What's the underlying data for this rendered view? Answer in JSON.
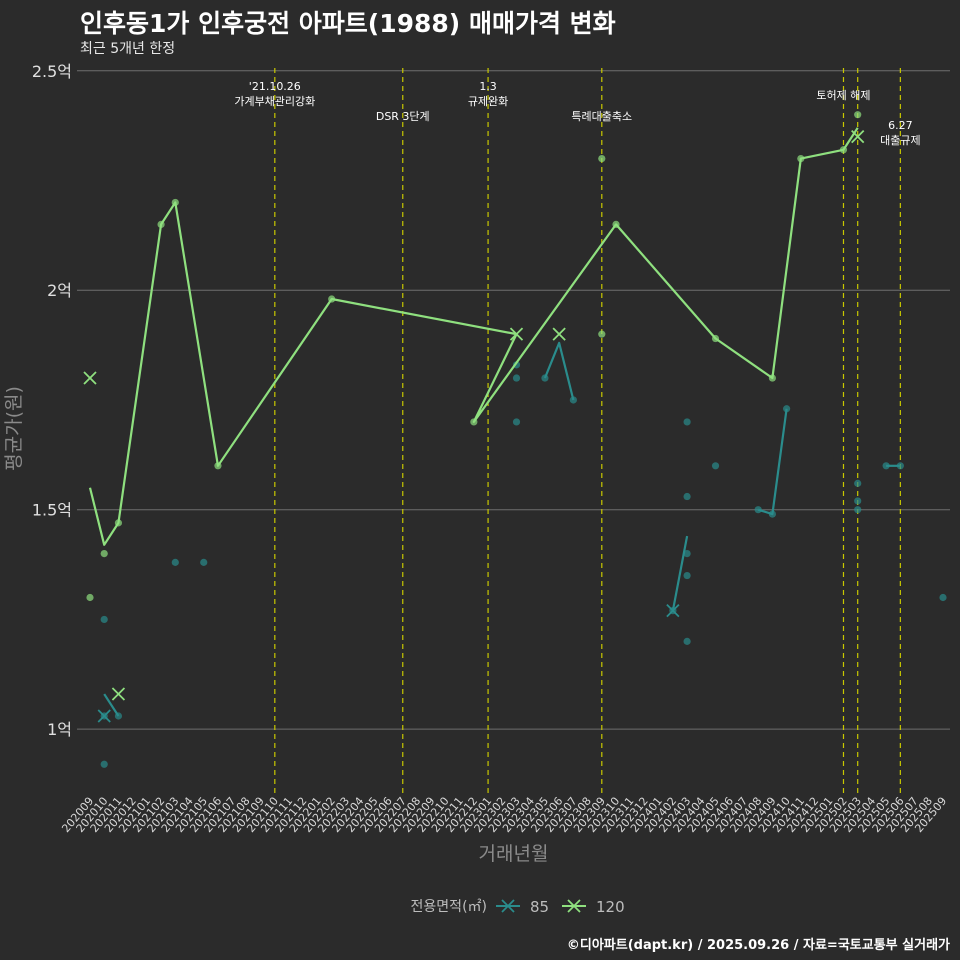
{
  "chart_data": {
    "type": "line",
    "title": "인후동1가 인후궁전 아파트(1988) 매매가격 변화",
    "subtitle": "최근 5개년 한정",
    "xlabel": "거래년월",
    "ylabel": "평균가(원)",
    "legend_title": "전용면적(㎡)",
    "legend_position": "bottom",
    "caption": "©디아파트(dapt.kr) / 2025.09.26 / 자료=국토교통부 실거래가",
    "grid": true,
    "ylim": [
      0.85,
      2.52
    ],
    "yticks": [
      1.0,
      1.5,
      2.0,
      2.5
    ],
    "ytick_labels": [
      "1억",
      "1.5억",
      "2억",
      "2.5억"
    ],
    "x": [
      "202009",
      "202010",
      "202011",
      "202012",
      "202101",
      "202102",
      "202103",
      "202104",
      "202105",
      "202106",
      "202107",
      "202108",
      "202109",
      "202110",
      "202111",
      "202112",
      "202201",
      "202202",
      "202203",
      "202204",
      "202205",
      "202206",
      "202207",
      "202208",
      "202209",
      "202210",
      "202211",
      "202212",
      "202301",
      "202302",
      "202303",
      "202304",
      "202305",
      "202306",
      "202307",
      "202308",
      "202309",
      "202310",
      "202311",
      "202312",
      "202401",
      "202402",
      "202403",
      "202404",
      "202405",
      "202406",
      "202407",
      "202408",
      "202409",
      "202410",
      "202411",
      "202412",
      "202501",
      "202502",
      "202503",
      "202504",
      "202505",
      "202506",
      "202507",
      "202508",
      "202509"
    ],
    "series": [
      {
        "name": "85",
        "color": "#2a8c8c",
        "line": [
          [
            "202010",
            1.08
          ],
          [
            "202011",
            1.03
          ],
          null,
          [
            "202305",
            1.8
          ],
          [
            "202306",
            1.88
          ],
          [
            "202307",
            1.75
          ],
          null,
          [
            "202402",
            1.27
          ],
          [
            "202403",
            1.44
          ],
          null,
          [
            "202408",
            1.5
          ],
          [
            "202409",
            1.49
          ],
          [
            "202410",
            1.73
          ],
          null,
          [
            "202505",
            1.6
          ],
          [
            "202506",
            1.6
          ]
        ],
        "points": [
          [
            "202010",
            1.25
          ],
          [
            "202010",
            0.92
          ],
          [
            "202010",
            1.03
          ],
          [
            "202011",
            1.03
          ],
          [
            "202103",
            1.38
          ],
          [
            "202105",
            1.38
          ],
          [
            "202303",
            1.83
          ],
          [
            "202303",
            1.8
          ],
          [
            "202303",
            1.7
          ],
          [
            "202305",
            1.8
          ],
          [
            "202307",
            1.75
          ],
          [
            "202402",
            1.27
          ],
          [
            "202403",
            1.7
          ],
          [
            "202403",
            1.53
          ],
          [
            "202403",
            1.4
          ],
          [
            "202403",
            1.35
          ],
          [
            "202403",
            1.2
          ],
          [
            "202405",
            1.6
          ],
          [
            "202408",
            1.5
          ],
          [
            "202409",
            1.49
          ],
          [
            "202410",
            1.73
          ],
          [
            "202503",
            1.56
          ],
          [
            "202503",
            1.52
          ],
          [
            "202503",
            1.5
          ],
          [
            "202505",
            1.6
          ],
          [
            "202506",
            1.6
          ],
          [
            "202509",
            1.3
          ]
        ],
        "crosses": [
          [
            "202010",
            1.03
          ],
          [
            "202402",
            1.27
          ]
        ]
      },
      {
        "name": "120",
        "color": "#8fe07f",
        "line": [
          [
            "202009",
            1.55
          ],
          [
            "202010",
            1.42
          ],
          [
            "202011",
            1.47
          ],
          [
            "202102",
            2.15
          ],
          [
            "202103",
            2.2
          ],
          [
            "202106",
            1.6
          ],
          [
            "202202",
            1.98
          ],
          [
            "202303",
            1.9
          ],
          [
            "202212",
            1.7
          ],
          [
            "202310",
            2.15
          ],
          [
            "202405",
            1.89
          ],
          [
            "202409",
            1.8
          ],
          [
            "202411",
            2.3
          ],
          [
            "202502",
            2.32
          ],
          [
            "202503",
            2.37
          ]
        ],
        "points": [
          [
            "202009",
            1.3
          ],
          [
            "202010",
            1.4
          ],
          [
            "202011",
            1.47
          ],
          [
            "202102",
            2.15
          ],
          [
            "202103",
            2.2
          ],
          [
            "202106",
            1.6
          ],
          [
            "202202",
            1.98
          ],
          [
            "202212",
            1.7
          ],
          [
            "202309",
            2.3
          ],
          [
            "202309",
            1.9
          ],
          [
            "202310",
            2.15
          ],
          [
            "202405",
            1.89
          ],
          [
            "202409",
            1.8
          ],
          [
            "202411",
            2.3
          ],
          [
            "202502",
            2.32
          ],
          [
            "202503",
            2.4
          ]
        ],
        "crosses": [
          [
            "202009",
            1.8
          ],
          [
            "202011",
            1.08
          ],
          [
            "202303",
            1.9
          ],
          [
            "202306",
            1.9
          ],
          [
            "202503",
            2.35
          ]
        ]
      }
    ],
    "annotations": [
      {
        "x": "202110",
        "lines": [
          "'21.10.26",
          "가계부채관리강화"
        ],
        "level": 0
      },
      {
        "x": "202207",
        "lines": [
          "DSR 3단계"
        ],
        "level": 1
      },
      {
        "x": "202301",
        "lines": [
          "1.3",
          "규제완화"
        ],
        "level": 0
      },
      {
        "x": "202309",
        "lines": [
          "특례대출축소"
        ],
        "level": 1
      },
      {
        "x": "202502",
        "lines": [
          "토허제 해제"
        ],
        "level": 2
      },
      {
        "x": "202503",
        "lines": [],
        "level": 2
      },
      {
        "x": "202506",
        "lines": [
          "6.27",
          "대출규제"
        ],
        "level": 3
      }
    ]
  }
}
